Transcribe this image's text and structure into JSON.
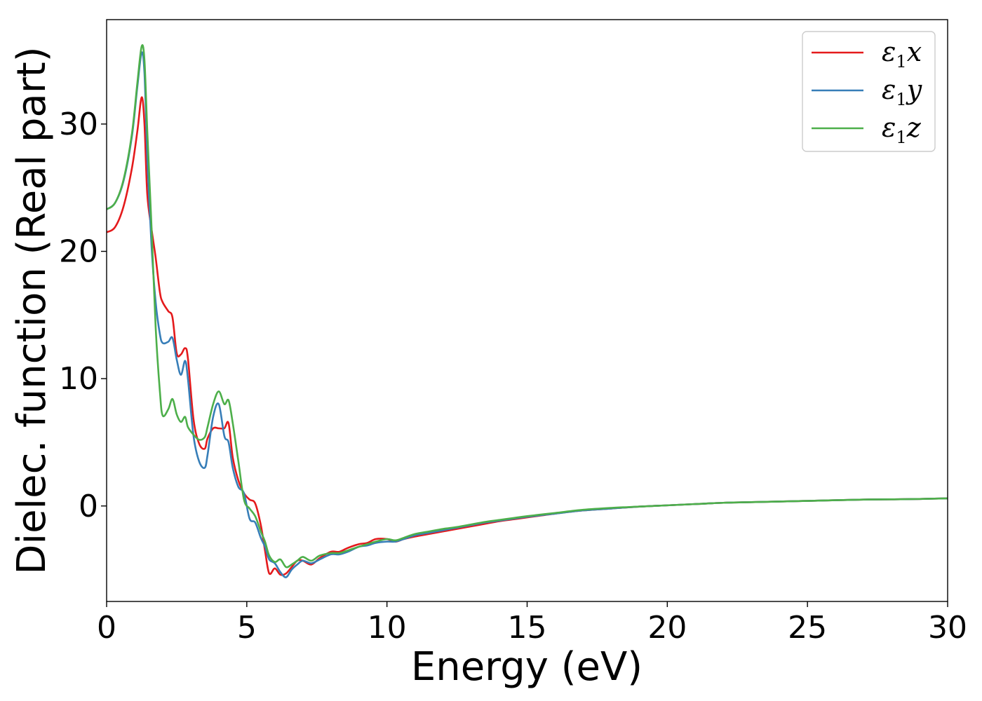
{
  "chart_data": {
    "type": "line",
    "xlabel": "Energy (eV)",
    "ylabel": "Dielec. function (Real part)",
    "xlim": [
      0,
      30
    ],
    "ylim": [
      -7.5,
      38.2
    ],
    "xticks": [
      0,
      5,
      10,
      15,
      20,
      25,
      30
    ],
    "yticks": [
      0,
      10,
      20,
      30
    ],
    "grid": false,
    "legend_position": "top-right",
    "series": [
      {
        "name": "ε₁x",
        "legend_main": "ε",
        "legend_sub": "1",
        "legend_var": "x",
        "color": "#e41a1c",
        "x": [
          0,
          0.3,
          0.6,
          0.9,
          1.1,
          1.25,
          1.35,
          1.45,
          1.6,
          1.75,
          1.9,
          2.0,
          2.2,
          2.35,
          2.5,
          2.65,
          2.8,
          2.9,
          3.1,
          3.3,
          3.5,
          3.6,
          3.8,
          4.0,
          4.2,
          4.35,
          4.5,
          4.7,
          4.9,
          5.1,
          5.3,
          5.5,
          5.65,
          5.8,
          6.0,
          6.2,
          6.4,
          6.6,
          6.8,
          7.0,
          7.3,
          7.6,
          8.0,
          8.3,
          8.6,
          9.0,
          9.3,
          9.6,
          10.0,
          10.3,
          10.6,
          11.0,
          11.5,
          12.0,
          12.5,
          13.0,
          13.5,
          14.0,
          14.5,
          15.0,
          16.0,
          17.0,
          18.0,
          19.0,
          20.0,
          21.0,
          22.0,
          23.0,
          24.0,
          25.0,
          26.0,
          27.0,
          28.0,
          29.0,
          30.0
        ],
        "y": [
          21.5,
          21.9,
          23.5,
          26.5,
          29.5,
          32.1,
          30.0,
          24.5,
          21.8,
          19.5,
          16.8,
          16.0,
          15.3,
          14.8,
          12.0,
          11.9,
          12.4,
          11.6,
          6.8,
          4.9,
          4.5,
          5.3,
          6.1,
          6.1,
          6.1,
          6.5,
          3.8,
          2.0,
          1.0,
          0.5,
          0.2,
          -1.5,
          -3.5,
          -5.3,
          -4.9,
          -5.4,
          -5.3,
          -4.8,
          -4.3,
          -4.3,
          -4.6,
          -4.1,
          -3.6,
          -3.6,
          -3.3,
          -3.0,
          -2.9,
          -2.6,
          -2.6,
          -2.8,
          -2.6,
          -2.4,
          -2.2,
          -2.0,
          -1.8,
          -1.6,
          -1.4,
          -1.2,
          -1.05,
          -0.9,
          -0.6,
          -0.35,
          -0.2,
          -0.05,
          0.05,
          0.15,
          0.25,
          0.3,
          0.35,
          0.4,
          0.45,
          0.5,
          0.52,
          0.55,
          0.6
        ]
      },
      {
        "name": "ε₁y",
        "legend_main": "ε",
        "legend_sub": "1",
        "legend_var": "y",
        "color": "#377eb8",
        "x": [
          0,
          0.3,
          0.6,
          0.9,
          1.1,
          1.25,
          1.35,
          1.45,
          1.6,
          1.75,
          1.9,
          2.0,
          2.2,
          2.35,
          2.5,
          2.65,
          2.8,
          2.9,
          3.1,
          3.3,
          3.5,
          3.6,
          3.8,
          4.0,
          4.2,
          4.35,
          4.5,
          4.7,
          4.9,
          5.1,
          5.3,
          5.5,
          5.65,
          5.8,
          6.0,
          6.2,
          6.4,
          6.6,
          6.8,
          7.0,
          7.3,
          7.6,
          8.0,
          8.3,
          8.6,
          9.0,
          9.3,
          9.6,
          10.0,
          10.3,
          10.6,
          11.0,
          11.5,
          12.0,
          12.5,
          13.0,
          13.5,
          14.0,
          14.5,
          15.0,
          16.0,
          17.0,
          18.0,
          19.0,
          20.0,
          21.0,
          22.0,
          23.0,
          24.0,
          25.0,
          26.0,
          27.0,
          28.0,
          29.0,
          30.0
        ],
        "y": [
          23.3,
          23.8,
          25.5,
          29.0,
          33.0,
          35.6,
          34.0,
          27.5,
          20.5,
          16.0,
          13.5,
          12.8,
          12.9,
          13.2,
          11.5,
          10.3,
          11.4,
          10.0,
          5.5,
          3.5,
          3.0,
          4.0,
          7.0,
          8.0,
          5.5,
          5.0,
          3.0,
          1.5,
          1.0,
          -1.0,
          -1.3,
          -2.5,
          -3.2,
          -4.2,
          -4.5,
          -5.2,
          -5.6,
          -5.0,
          -4.6,
          -4.3,
          -4.5,
          -4.2,
          -3.8,
          -3.8,
          -3.6,
          -3.2,
          -3.1,
          -2.9,
          -2.8,
          -2.8,
          -2.6,
          -2.3,
          -2.1,
          -1.9,
          -1.7,
          -1.5,
          -1.3,
          -1.15,
          -1.0,
          -0.85,
          -0.6,
          -0.35,
          -0.2,
          -0.05,
          0.05,
          0.15,
          0.25,
          0.3,
          0.35,
          0.4,
          0.45,
          0.5,
          0.52,
          0.55,
          0.6
        ]
      },
      {
        "name": "ε₁z",
        "legend_main": "ε",
        "legend_sub": "1",
        "legend_var": "z",
        "color": "#4daf4a",
        "x": [
          0,
          0.3,
          0.6,
          0.9,
          1.1,
          1.25,
          1.35,
          1.45,
          1.6,
          1.75,
          1.9,
          2.0,
          2.2,
          2.35,
          2.5,
          2.65,
          2.8,
          2.9,
          3.1,
          3.3,
          3.5,
          3.6,
          3.8,
          4.0,
          4.2,
          4.35,
          4.5,
          4.7,
          4.9,
          5.1,
          5.3,
          5.5,
          5.65,
          5.8,
          6.0,
          6.2,
          6.4,
          6.6,
          6.8,
          7.0,
          7.3,
          7.6,
          8.0,
          8.3,
          8.6,
          9.0,
          9.3,
          9.6,
          10.0,
          10.3,
          10.6,
          11.0,
          11.5,
          12.0,
          12.5,
          13.0,
          13.5,
          14.0,
          14.5,
          15.0,
          16.0,
          17.0,
          18.0,
          19.0,
          20.0,
          21.0,
          22.0,
          23.0,
          24.0,
          25.0,
          26.0,
          27.0,
          28.0,
          29.0,
          30.0
        ],
        "y": [
          23.3,
          23.8,
          25.6,
          29.2,
          33.3,
          36.1,
          35.0,
          29.5,
          22.0,
          14.0,
          9.0,
          7.1,
          7.6,
          8.4,
          7.2,
          6.6,
          7.0,
          6.2,
          5.6,
          5.2,
          5.4,
          6.2,
          8.0,
          9.0,
          8.0,
          8.3,
          6.5,
          3.5,
          0.5,
          -0.2,
          -0.8,
          -2.0,
          -2.8,
          -3.9,
          -4.4,
          -4.2,
          -4.8,
          -4.6,
          -4.3,
          -4.0,
          -4.3,
          -3.9,
          -3.7,
          -3.7,
          -3.5,
          -3.2,
          -3.0,
          -2.8,
          -2.6,
          -2.7,
          -2.5,
          -2.2,
          -2.0,
          -1.8,
          -1.65,
          -1.45,
          -1.25,
          -1.1,
          -0.95,
          -0.8,
          -0.55,
          -0.3,
          -0.15,
          -0.05,
          0.05,
          0.15,
          0.25,
          0.3,
          0.35,
          0.4,
          0.45,
          0.5,
          0.52,
          0.55,
          0.6
        ]
      }
    ]
  }
}
